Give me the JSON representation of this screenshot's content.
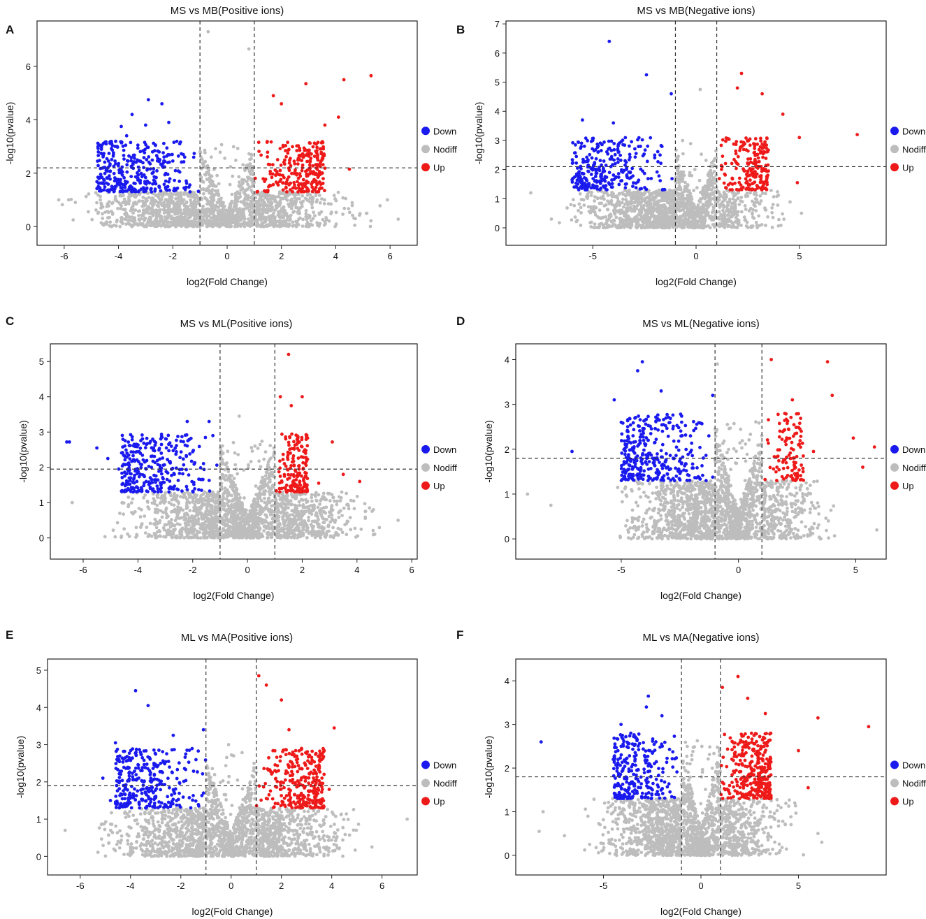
{
  "colors": {
    "down": "#1a1aee",
    "nodiff": "#bdbdbd",
    "up": "#ee1a1a"
  },
  "legend": [
    {
      "key": "down",
      "label": "Down"
    },
    {
      "key": "nodiff",
      "label": "Nodiff"
    },
    {
      "key": "up",
      "label": "Up"
    }
  ],
  "chart_data": [
    {
      "letter": "A",
      "type": "scatter",
      "title": "MS vs MB(Positive ions)",
      "xlabel": "log2(Fold Change)",
      "ylabel": "-log10(pvalue)",
      "xlim": [
        -7,
        7
      ],
      "ylim": [
        -0.7,
        7.7
      ],
      "xticks": [
        -6,
        -4,
        -2,
        0,
        2,
        4,
        6
      ],
      "yticks": [
        0,
        2,
        4,
        6
      ],
      "fc_cutoff": [
        -1,
        1
      ],
      "p_cutoff": 2.2,
      "extremes": {
        "down": [
          [
            -2.9,
            4.75
          ],
          [
            -2.4,
            4.6
          ],
          [
            -3.5,
            4.2
          ],
          [
            -3.9,
            3.75
          ],
          [
            -4.7,
            3.05
          ],
          [
            -3.0,
            3.8
          ],
          [
            -2.15,
            3.9
          ],
          [
            -3.7,
            3.4
          ]
        ],
        "up": [
          [
            5.3,
            5.65
          ],
          [
            4.3,
            5.5
          ],
          [
            2.9,
            5.35
          ],
          [
            4.1,
            4.1
          ],
          [
            3.6,
            3.8
          ],
          [
            1.7,
            4.9
          ],
          [
            2.0,
            4.6
          ],
          [
            4.5,
            2.15
          ]
        ],
        "nodiff": [
          [
            -0.7,
            7.3
          ],
          [
            0.8,
            6.65
          ],
          [
            6.3,
            0.28
          ],
          [
            5.9,
            1.0
          ],
          [
            4.7,
            0.05
          ],
          [
            -6.2,
            1.0
          ]
        ]
      },
      "density": {
        "down_n": 330,
        "up_n": 260,
        "nodiff_n": 1650,
        "down_x": [
          -4.8,
          -1.0
        ],
        "up_x": [
          1.0,
          3.6
        ],
        "nodiff_x": [
          -6.5,
          5.8
        ]
      }
    },
    {
      "letter": "B",
      "type": "scatter",
      "title": "MS vs MB(Negative ions)",
      "xlabel": "log2(Fold Change)",
      "ylabel": "-log10(pvalue)",
      "xlim": [
        -9.2,
        9.2
      ],
      "ylim": [
        -0.6,
        7.1
      ],
      "xticks": [
        -5,
        0,
        5
      ],
      "yticks": [
        0,
        1,
        2,
        3,
        4,
        5,
        6,
        7
      ],
      "fc_cutoff": [
        -1,
        1
      ],
      "p_cutoff": 2.1,
      "extremes": {
        "down": [
          [
            -4.2,
            6.4
          ],
          [
            -2.4,
            5.25
          ],
          [
            -1.2,
            4.6
          ],
          [
            -5.5,
            3.7
          ],
          [
            -4.0,
            3.6
          ],
          [
            -5.0,
            3.0
          ],
          [
            -5.2,
            2.1
          ],
          [
            -6.0,
            1.65
          ]
        ],
        "up": [
          [
            2.2,
            5.3
          ],
          [
            2.0,
            4.8
          ],
          [
            3.2,
            4.6
          ],
          [
            4.2,
            3.9
          ],
          [
            5.0,
            3.1
          ],
          [
            7.8,
            3.2
          ],
          [
            4.9,
            1.55
          ],
          [
            3.5,
            1.95
          ]
        ],
        "nodiff": [
          [
            0.2,
            4.75
          ],
          [
            -8.0,
            1.2
          ],
          [
            5.1,
            0.5
          ],
          [
            -7.0,
            0.3
          ]
        ]
      },
      "density": {
        "down_n": 280,
        "up_n": 210,
        "nodiff_n": 1550,
        "down_x": [
          -6.0,
          -1.0
        ],
        "up_x": [
          1.0,
          3.5
        ],
        "nodiff_x": [
          -7.0,
          5.0
        ]
      }
    },
    {
      "letter": "C",
      "type": "scatter",
      "title": "MS vs ML(Positive ions)",
      "xlabel": "log2(Fold Change)",
      "ylabel": "-log10(pvalue)",
      "xlim": [
        -7.2,
        6.2
      ],
      "ylim": [
        -0.6,
        5.5
      ],
      "xticks": [
        -6,
        -4,
        -2,
        0,
        2,
        4,
        6
      ],
      "yticks": [
        0,
        1,
        2,
        3,
        4,
        5
      ],
      "fc_cutoff": [
        -1,
        1
      ],
      "p_cutoff": 1.95,
      "extremes": {
        "down": [
          [
            -6.6,
            2.72
          ],
          [
            -6.5,
            2.72
          ],
          [
            -5.5,
            2.55
          ],
          [
            -4.4,
            2.4
          ],
          [
            -2.2,
            3.3
          ],
          [
            -1.4,
            3.3
          ],
          [
            -5.1,
            2.25
          ],
          [
            -4.7,
            1.95
          ]
        ],
        "up": [
          [
            1.5,
            5.2
          ],
          [
            1.2,
            4.0
          ],
          [
            2.0,
            4.0
          ],
          [
            1.6,
            3.75
          ],
          [
            3.1,
            2.72
          ],
          [
            4.1,
            1.6
          ],
          [
            3.5,
            1.8
          ],
          [
            2.6,
            1.55
          ]
        ],
        "nodiff": [
          [
            -0.3,
            3.45
          ],
          [
            5.5,
            0.5
          ],
          [
            -6.4,
            1.0
          ],
          [
            4.6,
            0.8
          ]
        ]
      },
      "density": {
        "down_n": 300,
        "up_n": 170,
        "nodiff_n": 1850,
        "down_x": [
          -4.6,
          -1.0
        ],
        "up_x": [
          1.0,
          2.2
        ],
        "nodiff_x": [
          -5.6,
          5.2
        ]
      }
    },
    {
      "letter": "D",
      "type": "scatter",
      "title": "MS vs ML(Negative ions)",
      "xlabel": "log2(Fold Change)",
      "ylabel": "-log10(pvalue)",
      "xlim": [
        -9.5,
        6.3
      ],
      "ylim": [
        -0.45,
        4.35
      ],
      "xticks": [
        -5,
        0,
        5
      ],
      "yticks": [
        0,
        1,
        2,
        3,
        4
      ],
      "fc_cutoff": [
        -1,
        1
      ],
      "p_cutoff": 1.8,
      "extremes": {
        "down": [
          [
            -4.1,
            3.95
          ],
          [
            -4.3,
            3.75
          ],
          [
            -5.3,
            3.1
          ],
          [
            -3.3,
            3.3
          ],
          [
            -1.1,
            3.2
          ],
          [
            -7.1,
            1.95
          ],
          [
            -5.0,
            2.6
          ],
          [
            -4.9,
            1.35
          ]
        ],
        "up": [
          [
            1.4,
            4.0
          ],
          [
            3.8,
            3.95
          ],
          [
            4.0,
            3.2
          ],
          [
            2.3,
            3.1
          ],
          [
            4.9,
            2.25
          ],
          [
            5.8,
            2.05
          ],
          [
            5.3,
            1.6
          ],
          [
            3.2,
            1.95
          ]
        ],
        "nodiff": [
          [
            -9.0,
            1.0
          ],
          [
            -8.0,
            0.75
          ],
          [
            5.9,
            0.2
          ],
          [
            -0.9,
            3.9
          ]
        ]
      },
      "density": {
        "down_n": 320,
        "up_n": 110,
        "nodiff_n": 1750,
        "down_x": [
          -5.0,
          -1.0
        ],
        "up_x": [
          1.0,
          2.8
        ],
        "nodiff_x": [
          -6.0,
          4.5
        ]
      }
    },
    {
      "letter": "E",
      "type": "scatter",
      "title": "ML vs MA(Positive ions)",
      "xlabel": "log2(Fold Change)",
      "ylabel": "-log10(pvalue)",
      "xlim": [
        -7.3,
        7.4
      ],
      "ylim": [
        -0.5,
        5.3
      ],
      "xticks": [
        -6,
        -4,
        -2,
        0,
        2,
        4,
        6
      ],
      "yticks": [
        0,
        1,
        2,
        3,
        4,
        5
      ],
      "fc_cutoff": [
        -1,
        1
      ],
      "p_cutoff": 1.9,
      "extremes": {
        "down": [
          [
            -3.8,
            4.45
          ],
          [
            -3.3,
            4.05
          ],
          [
            -4.6,
            3.05
          ],
          [
            -2.3,
            3.25
          ],
          [
            -1.1,
            3.4
          ],
          [
            -5.1,
            2.1
          ],
          [
            -4.8,
            1.5
          ],
          [
            -4.2,
            1.85
          ]
        ],
        "up": [
          [
            1.1,
            4.85
          ],
          [
            1.4,
            4.6
          ],
          [
            2.0,
            4.2
          ],
          [
            4.1,
            3.45
          ],
          [
            3.6,
            2.6
          ],
          [
            2.3,
            3.4
          ],
          [
            3.9,
            1.8
          ],
          [
            2.8,
            2.9
          ]
        ],
        "nodiff": [
          [
            -0.1,
            3.0
          ],
          [
            7.0,
            1.0
          ],
          [
            -6.6,
            0.7
          ],
          [
            5.6,
            0.25
          ]
        ]
      },
      "density": {
        "down_n": 300,
        "up_n": 290,
        "nodiff_n": 1850,
        "down_x": [
          -4.6,
          -1.0
        ],
        "up_x": [
          1.0,
          3.7
        ],
        "nodiff_x": [
          -6.0,
          5.8
        ]
      }
    },
    {
      "letter": "F",
      "type": "scatter",
      "title": "ML vs MA(Negative ions)",
      "xlabel": "log2(Fold Change)",
      "ylabel": "-log10(pvalue)",
      "xlim": [
        -9.5,
        9.5
      ],
      "ylim": [
        -0.45,
        4.5
      ],
      "xticks": [
        -5,
        0,
        5
      ],
      "yticks": [
        0,
        1,
        2,
        3,
        4
      ],
      "fc_cutoff": [
        -1,
        1
      ],
      "p_cutoff": 1.8,
      "extremes": {
        "down": [
          [
            -8.2,
            2.6
          ],
          [
            -2.7,
            3.65
          ],
          [
            -2.8,
            3.4
          ],
          [
            -4.1,
            3.0
          ],
          [
            -2.0,
            3.2
          ],
          [
            -4.5,
            2.2
          ],
          [
            -4.3,
            1.35
          ],
          [
            -3.6,
            2.8
          ]
        ],
        "up": [
          [
            1.9,
            4.1
          ],
          [
            1.1,
            3.85
          ],
          [
            8.6,
            2.95
          ],
          [
            6.0,
            3.15
          ],
          [
            5.0,
            2.4
          ],
          [
            5.5,
            1.55
          ],
          [
            3.3,
            3.25
          ],
          [
            2.4,
            3.6
          ]
        ],
        "nodiff": [
          [
            -8.1,
            1.0
          ],
          [
            -8.3,
            0.55
          ],
          [
            6.0,
            0.5
          ],
          [
            6.2,
            0.3
          ],
          [
            -7.0,
            0.45
          ]
        ]
      },
      "density": {
        "down_n": 260,
        "up_n": 330,
        "nodiff_n": 1750,
        "down_x": [
          -4.5,
          -1.0
        ],
        "up_x": [
          1.0,
          3.6
        ],
        "nodiff_x": [
          -6.5,
          5.5
        ]
      }
    }
  ]
}
